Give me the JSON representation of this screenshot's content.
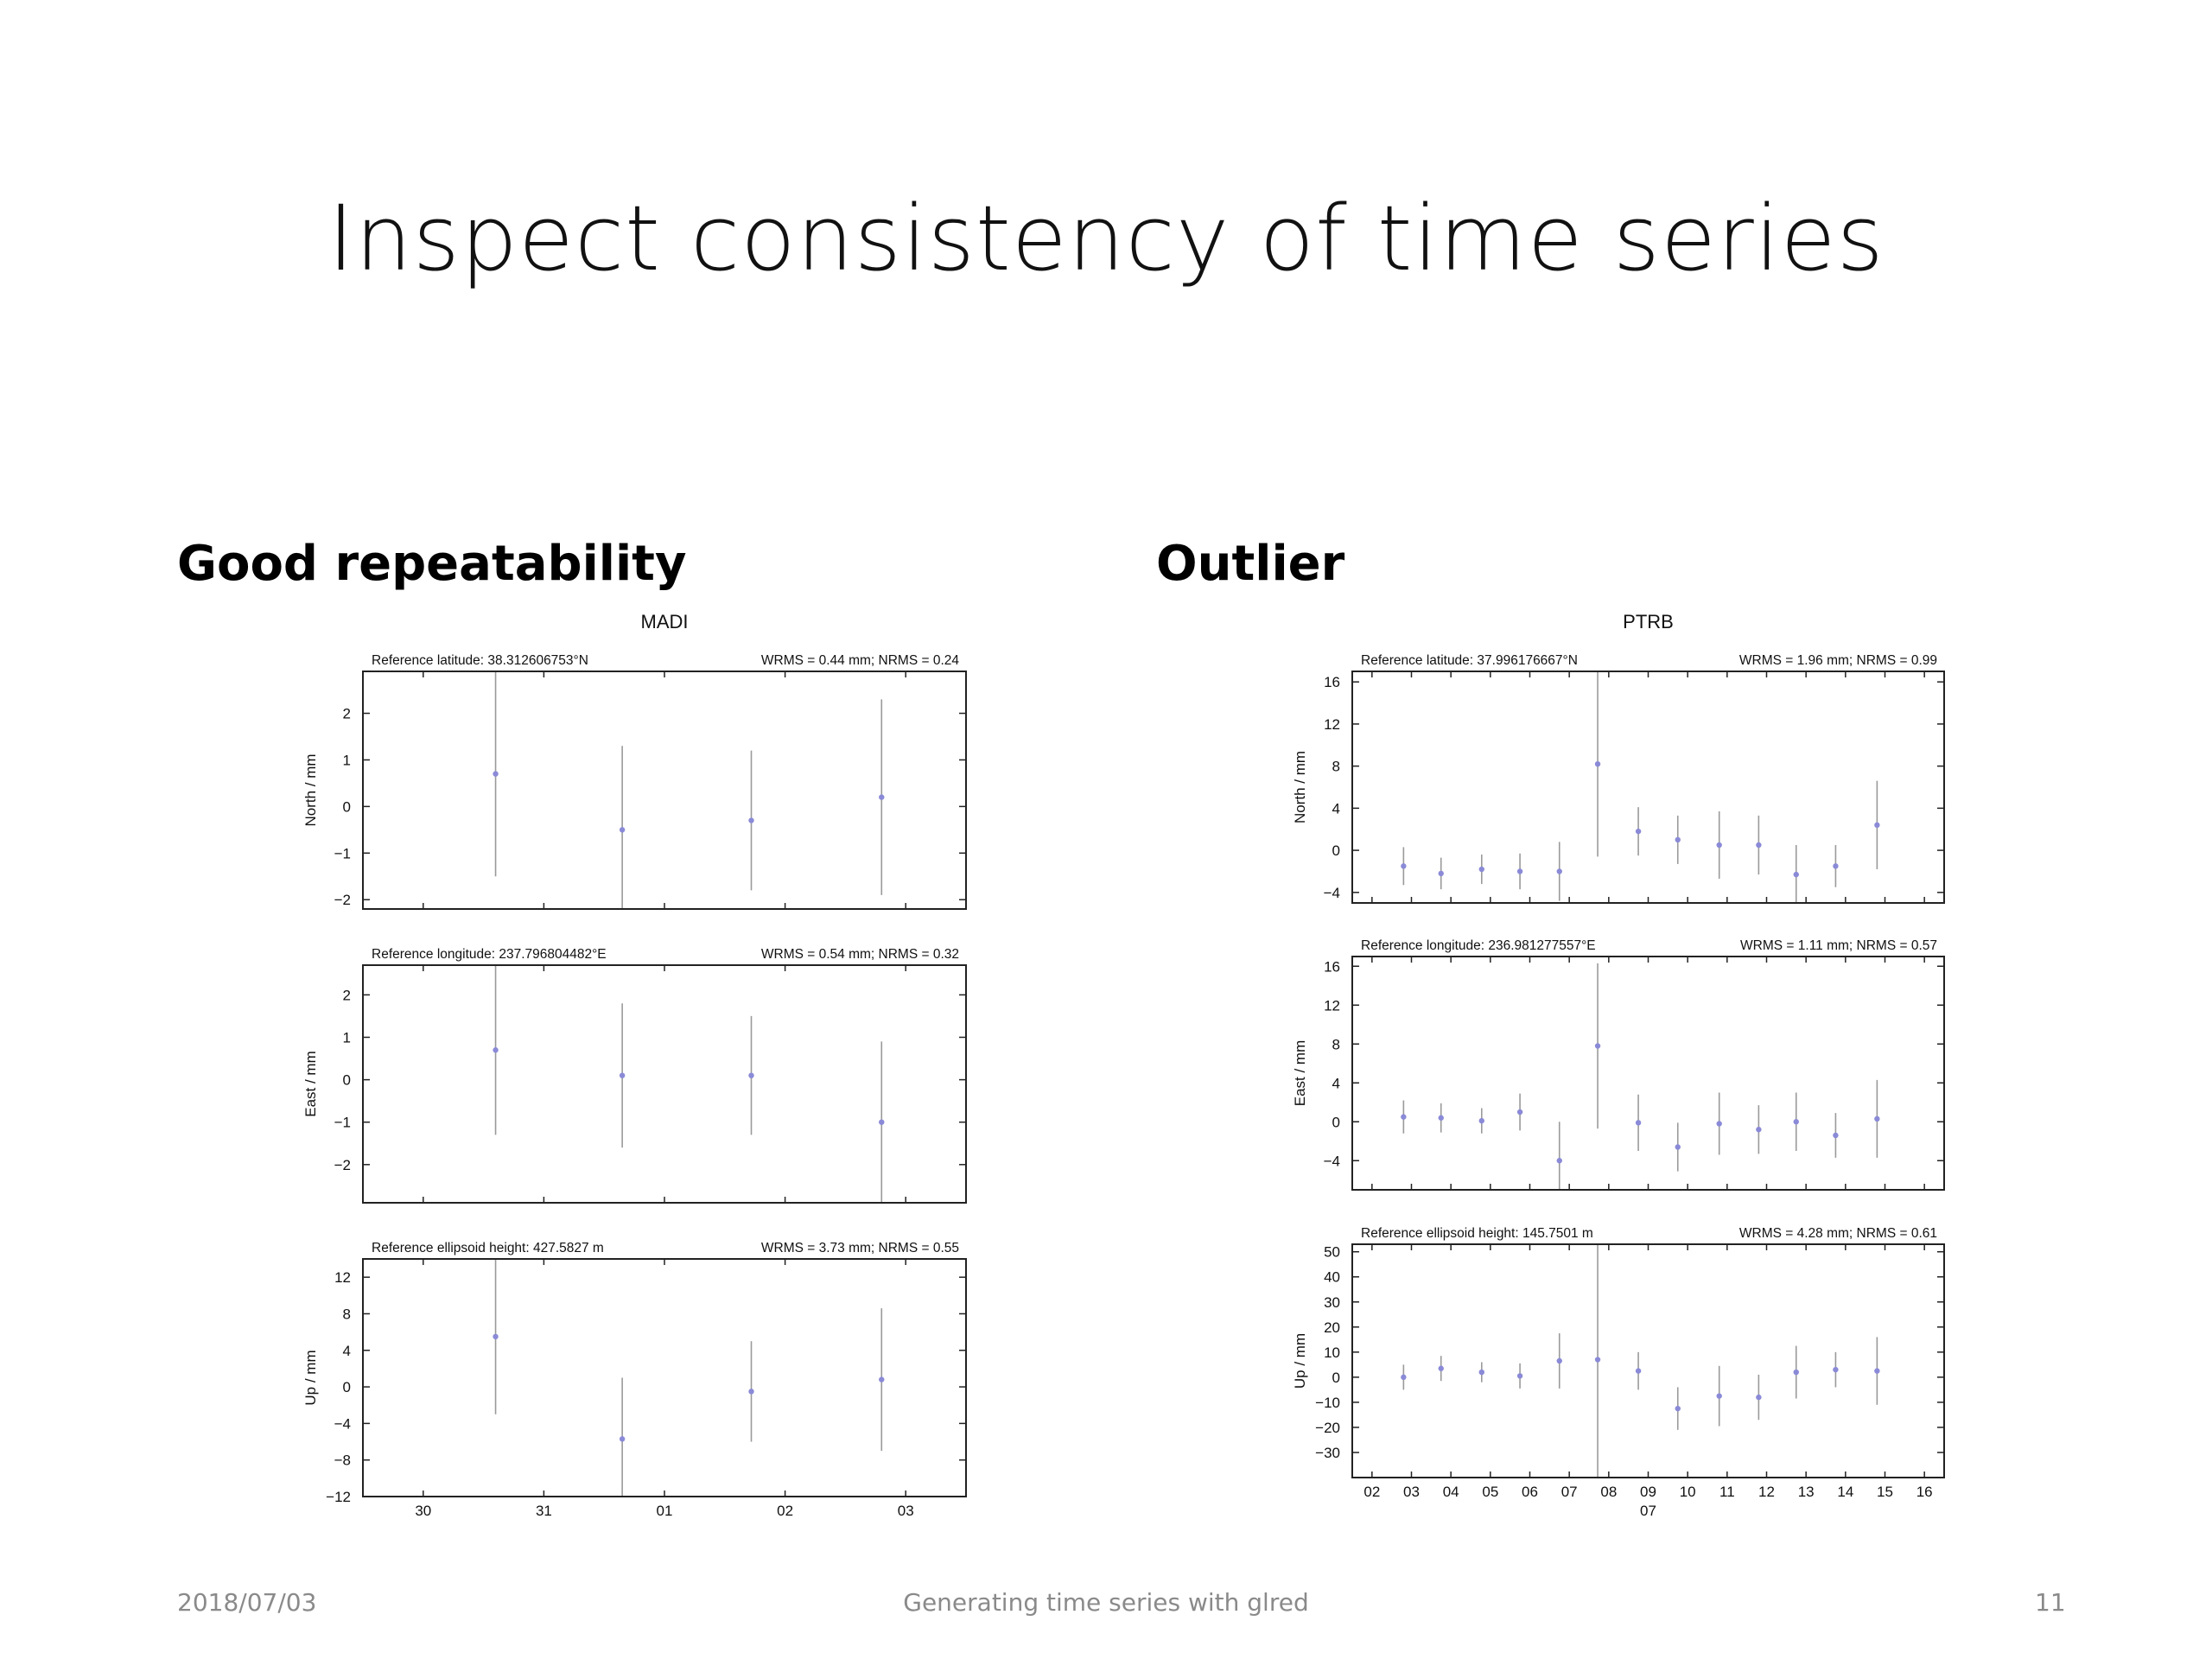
{
  "slide": {
    "title": "Inspect consistency of time series",
    "left_heading": "Good repeatability",
    "right_heading": "Outlier",
    "footer_date": "2018/07/03",
    "footer_center": "Generating time series with glred",
    "footer_page": "11"
  },
  "colors": {
    "point": "#8a8ad8",
    "errorbar": "#9a9a9a",
    "frame": "#222222"
  },
  "chart_data": [
    {
      "type": "scatter",
      "title": "MADI",
      "x_tick_labels": [
        "30",
        "31",
        "01",
        "02",
        "03"
      ],
      "x_range": [
        29.5,
        34.5
      ],
      "x_ticks": [
        30,
        31,
        32,
        33,
        34
      ],
      "panels": [
        {
          "ylabel": "North / mm",
          "ref_text": "Reference latitude: 38.312606753°N",
          "stats_text": "WRMS = 0.44 mm; NRMS = 0.24",
          "ylim": [
            -2.2,
            2.9
          ],
          "yticks": [
            -2,
            -1,
            0,
            1,
            2
          ],
          "ytick_labels": [
            "−2",
            "−1",
            "0",
            "1",
            "2"
          ],
          "points": [
            {
              "x": 30.6,
              "y": 0.7,
              "err": 2.2
            },
            {
              "x": 31.65,
              "y": -0.5,
              "err": 1.8
            },
            {
              "x": 32.72,
              "y": -0.3,
              "err": 1.5
            },
            {
              "x": 33.8,
              "y": 0.2,
              "err": 2.1
            }
          ]
        },
        {
          "ylabel": "East / mm",
          "ref_text": "Reference longitude: 237.796804482°E",
          "stats_text": "WRMS = 0.54 mm; NRMS = 0.32",
          "ylim": [
            -2.9,
            2.7
          ],
          "yticks": [
            -2,
            -1,
            0,
            1,
            2
          ],
          "ytick_labels": [
            "−2",
            "−1",
            "0",
            "1",
            "2"
          ],
          "points": [
            {
              "x": 30.6,
              "y": 0.7,
              "err": 2.0
            },
            {
              "x": 31.65,
              "y": 0.1,
              "err": 1.7
            },
            {
              "x": 32.72,
              "y": 0.1,
              "err": 1.4
            },
            {
              "x": 33.8,
              "y": -1.0,
              "err": 1.9
            }
          ]
        },
        {
          "ylabel": "Up / mm",
          "ref_text": "Reference ellipsoid height: 427.5827 m",
          "stats_text": "WRMS = 3.73 mm; NRMS = 0.55",
          "ylim": [
            -12,
            14
          ],
          "yticks": [
            -12,
            -8,
            -4,
            0,
            4,
            8,
            12
          ],
          "ytick_labels": [
            "−12",
            "−8",
            "−4",
            "0",
            "4",
            "8",
            "12"
          ],
          "points": [
            {
              "x": 30.6,
              "y": 5.5,
              "err": 8.5
            },
            {
              "x": 31.65,
              "y": -5.7,
              "err": 6.7
            },
            {
              "x": 32.72,
              "y": -0.5,
              "err": 5.5
            },
            {
              "x": 33.8,
              "y": 0.8,
              "err": 7.8
            }
          ]
        }
      ]
    },
    {
      "type": "scatter",
      "title": "PTRB",
      "x_tick_labels": [
        "02",
        "03",
        "04",
        "05",
        "06",
        "07",
        "08",
        "09",
        "10",
        "11",
        "12",
        "13",
        "14",
        "15",
        "16"
      ],
      "x_sublabel": "07",
      "x_range": [
        1.5,
        16.5
      ],
      "x_ticks": [
        2,
        3,
        4,
        5,
        6,
        7,
        8,
        9,
        10,
        11,
        12,
        13,
        14,
        15,
        16
      ],
      "panels": [
        {
          "ylabel": "North / mm",
          "ref_text": "Reference latitude: 37.996176667°N",
          "stats_text": "WRMS = 1.96 mm; NRMS = 0.99",
          "ylim": [
            -5,
            17
          ],
          "yticks": [
            -4,
            0,
            4,
            8,
            12,
            16
          ],
          "ytick_labels": [
            "−4",
            "0",
            "4",
            "8",
            "12",
            "16"
          ],
          "points": [
            {
              "x": 2.8,
              "y": -1.5,
              "err": 1.8
            },
            {
              "x": 3.75,
              "y": -2.2,
              "err": 1.5
            },
            {
              "x": 4.78,
              "y": -1.8,
              "err": 1.4
            },
            {
              "x": 5.75,
              "y": -2.0,
              "err": 1.7
            },
            {
              "x": 6.75,
              "y": -2.0,
              "err": 2.8
            },
            {
              "x": 7.72,
              "y": 8.2,
              "err": 8.8
            },
            {
              "x": 8.75,
              "y": 1.8,
              "err": 2.3
            },
            {
              "x": 9.75,
              "y": 1.0,
              "err": 2.3
            },
            {
              "x": 10.8,
              "y": 0.5,
              "err": 3.2
            },
            {
              "x": 11.8,
              "y": 0.5,
              "err": 2.8
            },
            {
              "x": 12.75,
              "y": -2.3,
              "err": 2.8
            },
            {
              "x": 13.75,
              "y": -1.5,
              "err": 2.0
            },
            {
              "x": 14.8,
              "y": 2.4,
              "err": 4.2
            }
          ]
        },
        {
          "ylabel": "East / mm",
          "ref_text": "Reference longitude: 236.981277557°E",
          "stats_text": "WRMS = 1.11 mm; NRMS = 0.57",
          "ylim": [
            -7,
            17
          ],
          "yticks": [
            -4,
            0,
            4,
            8,
            12,
            16
          ],
          "ytick_labels": [
            "−4",
            "0",
            "4",
            "8",
            "12",
            "16"
          ],
          "points": [
            {
              "x": 2.8,
              "y": 0.5,
              "err": 1.7
            },
            {
              "x": 3.75,
              "y": 0.4,
              "err": 1.5
            },
            {
              "x": 4.78,
              "y": 0.1,
              "err": 1.3
            },
            {
              "x": 5.75,
              "y": 1.0,
              "err": 1.9
            },
            {
              "x": 6.75,
              "y": -4.0,
              "err": 4.0
            },
            {
              "x": 7.72,
              "y": 7.8,
              "err": 8.5
            },
            {
              "x": 8.75,
              "y": -0.1,
              "err": 2.9
            },
            {
              "x": 9.75,
              "y": -2.6,
              "err": 2.5
            },
            {
              "x": 10.8,
              "y": -0.2,
              "err": 3.2
            },
            {
              "x": 11.8,
              "y": -0.8,
              "err": 2.5
            },
            {
              "x": 12.75,
              "y": 0.0,
              "err": 3.0
            },
            {
              "x": 13.75,
              "y": -1.4,
              "err": 2.3
            },
            {
              "x": 14.8,
              "y": 0.3,
              "err": 4.0
            }
          ]
        },
        {
          "ylabel": "Up / mm",
          "ref_text": "Reference ellipsoid height: 145.7501 m",
          "stats_text": "WRMS = 4.28 mm; NRMS = 0.61",
          "ylim": [
            -40,
            53
          ],
          "yticks": [
            -30,
            -20,
            -10,
            0,
            10,
            20,
            30,
            40,
            50
          ],
          "ytick_labels": [
            "−30",
            "−20",
            "−10",
            "0",
            "10",
            "20",
            "30",
            "40",
            "50"
          ],
          "points": [
            {
              "x": 2.8,
              "y": 0.0,
              "err": 5.0
            },
            {
              "x": 3.75,
              "y": 3.5,
              "err": 5.0
            },
            {
              "x": 4.78,
              "y": 2.0,
              "err": 4.0
            },
            {
              "x": 5.75,
              "y": 0.5,
              "err": 5.0
            },
            {
              "x": 6.75,
              "y": 6.5,
              "err": 11.0
            },
            {
              "x": 7.72,
              "y": 7.0,
              "err": 70.0
            },
            {
              "x": 8.75,
              "y": 2.5,
              "err": 7.5
            },
            {
              "x": 9.75,
              "y": -12.5,
              "err": 8.5
            },
            {
              "x": 10.8,
              "y": -7.5,
              "err": 12.0
            },
            {
              "x": 11.8,
              "y": -8.0,
              "err": 9.0
            },
            {
              "x": 12.75,
              "y": 2.0,
              "err": 10.5
            },
            {
              "x": 13.75,
              "y": 3.0,
              "err": 7.0
            },
            {
              "x": 14.8,
              "y": 2.5,
              "err": 13.5
            }
          ]
        }
      ]
    }
  ]
}
